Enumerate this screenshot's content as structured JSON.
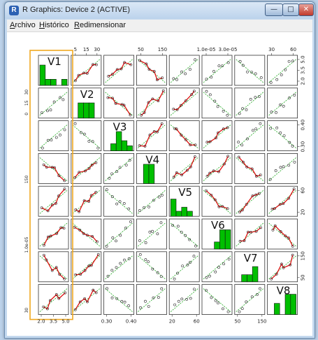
{
  "window": {
    "title": "R Graphics: Device 2 (ACTIVE)",
    "app_icon": "R",
    "minimize_glyph": "—",
    "maximize_glyph": "□",
    "close_glyph": "✕"
  },
  "menu": {
    "items": [
      "Archivo",
      "Histórico",
      "Redimensionar"
    ]
  },
  "colors": {
    "histogram_fill": "#00bf00",
    "smooth_line": "#e01010",
    "fit_line": "#22aa22",
    "highlight_box": "#f0a820"
  },
  "chart_data": {
    "type": "scatterplot-matrix",
    "variables": [
      "V1",
      "V2",
      "V3",
      "V4",
      "V5",
      "V6",
      "V7",
      "V8"
    ],
    "top_axis": {
      "V2": [
        "5",
        "15",
        "30"
      ],
      "V4": [
        "50",
        "150"
      ],
      "V6": [
        "1.0e-05",
        "3.0e-05"
      ],
      "V8": [
        "30",
        "60"
      ]
    },
    "bottom_axis": {
      "V1": [
        "2.0",
        "3.5",
        "5.0"
      ],
      "V3": [
        "0.30",
        "0.40"
      ],
      "V5": [
        "20",
        "60"
      ],
      "V7": [
        "50",
        "150"
      ]
    },
    "left_axis": {
      "V2": [
        "0",
        "15",
        "30"
      ],
      "V4": [
        "150"
      ],
      "V6": [
        "1.0e-05"
      ],
      "V8": [
        "30"
      ]
    },
    "right_axis": {
      "V1": [
        "2.0",
        "3.5",
        "5.0"
      ],
      "V3": [
        "0.30",
        "0.40"
      ],
      "V5": [
        "20",
        "60"
      ],
      "V7": [
        "50",
        "150"
      ]
    }
  }
}
